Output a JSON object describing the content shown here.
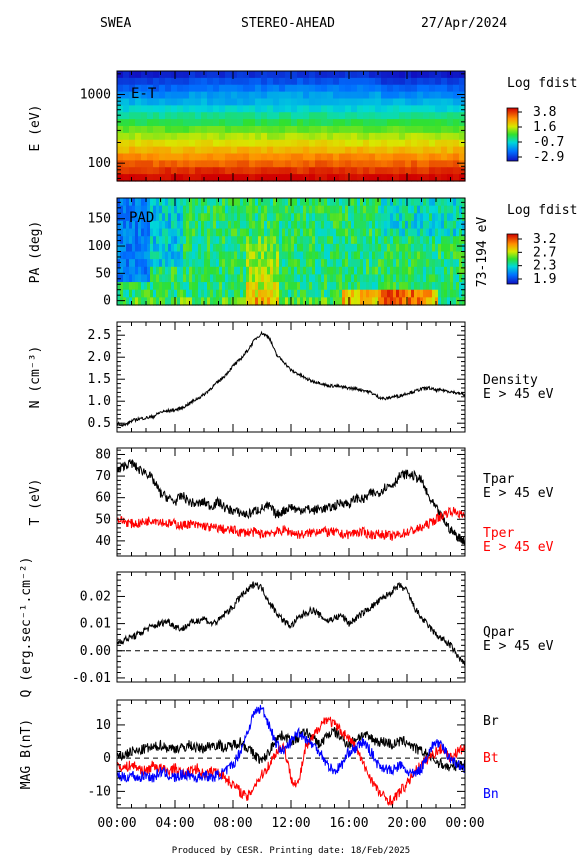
{
  "header": {
    "left": "SWEA",
    "center": "STEREO-AHEAD",
    "right": "27/Apr/2024"
  },
  "footer": "Produced by CESR.   Printing date: 18/Feb/2025",
  "colors": {
    "black": "#000000",
    "red": "#ff0000",
    "blue": "#0000ff"
  },
  "chart_data": [
    {
      "type": "heatmap",
      "panel_label": "E-T",
      "ylabel": "E (eV)",
      "y_scale": "log",
      "ylim": [
        55,
        2200
      ],
      "y_ticks": [
        {
          "v": 100,
          "t": "100"
        },
        {
          "v": 1000,
          "t": "1000"
        }
      ],
      "colorbar": {
        "title": "Log fdist",
        "ticks": [
          "3.8",
          "1.6",
          "-0.7",
          "-2.9"
        ],
        "range": [
          -2.9,
          3.8
        ]
      }
    },
    {
      "type": "heatmap",
      "panel_label": "PAD",
      "ylabel": "PA (deg)",
      "ylim": [
        -8,
        188
      ],
      "y_ticks": [
        {
          "v": 0,
          "t": "0"
        },
        {
          "v": 50,
          "t": "50"
        },
        {
          "v": 100,
          "t": "100"
        },
        {
          "v": 150,
          "t": "150"
        }
      ],
      "right_label": "73-194 eV",
      "colorbar": {
        "title": "Log fdist",
        "ticks": [
          "3.2",
          "2.7",
          "2.3",
          "1.9"
        ],
        "range": [
          1.9,
          3.2
        ]
      }
    },
    {
      "type": "line",
      "ylabel": "N (cm⁻³)",
      "ylim": [
        0.3,
        2.8
      ],
      "y_ticks": [
        {
          "v": 0.5,
          "t": "0.5"
        },
        {
          "v": 1.0,
          "t": "1.0"
        },
        {
          "v": 1.5,
          "t": "1.5"
        },
        {
          "v": 2.0,
          "t": "2.0"
        },
        {
          "v": 2.5,
          "t": "2.5"
        }
      ],
      "series": [
        {
          "name": "Density",
          "sub": "E > 45 eV",
          "color": "#000000",
          "x": [
            0,
            0.5,
            1.0,
            1.5,
            2.0,
            2.5,
            3.0,
            3.5,
            4.0,
            4.5,
            5.0,
            5.5,
            6.0,
            6.5,
            7.0,
            7.5,
            8.0,
            8.5,
            9.0,
            9.5,
            10.0,
            10.5,
            11.0,
            11.5,
            12.0,
            12.5,
            13.0,
            13.5,
            14.0,
            14.5,
            15.0,
            15.5,
            16.0,
            16.5,
            17.0,
            17.5,
            18.0,
            18.5,
            19.0,
            19.5,
            20.0,
            20.5,
            21.0,
            21.5,
            22.0,
            22.5,
            23.0,
            23.5,
            24.0
          ],
          "y": [
            0.5,
            0.45,
            0.55,
            0.6,
            0.62,
            0.65,
            0.75,
            0.78,
            0.8,
            0.85,
            0.95,
            1.05,
            1.15,
            1.3,
            1.45,
            1.6,
            1.8,
            1.95,
            2.15,
            2.4,
            2.55,
            2.45,
            2.05,
            1.9,
            1.7,
            1.62,
            1.52,
            1.45,
            1.42,
            1.35,
            1.35,
            1.32,
            1.3,
            1.28,
            1.25,
            1.2,
            1.1,
            1.05,
            1.1,
            1.12,
            1.18,
            1.22,
            1.28,
            1.3,
            1.25,
            1.25,
            1.22,
            1.18,
            1.15
          ]
        }
      ]
    },
    {
      "type": "line",
      "ylabel": "T (eV)",
      "ylim": [
        33,
        83
      ],
      "y_ticks": [
        {
          "v": 40,
          "t": "40"
        },
        {
          "v": 50,
          "t": "50"
        },
        {
          "v": 60,
          "t": "60"
        },
        {
          "v": 70,
          "t": "70"
        },
        {
          "v": 80,
          "t": "80"
        }
      ],
      "series": [
        {
          "name": "Tpar",
          "sub": "E > 45 eV",
          "color": "#000000",
          "x": [
            0,
            0.5,
            1.0,
            1.5,
            2.0,
            2.5,
            3.0,
            3.5,
            4.0,
            4.5,
            5.0,
            5.5,
            6.0,
            6.5,
            7.0,
            7.5,
            8.0,
            8.5,
            9.0,
            9.5,
            10.0,
            10.5,
            11.0,
            11.5,
            12.0,
            12.5,
            13.0,
            13.5,
            14.0,
            14.5,
            15.0,
            15.5,
            16.0,
            16.5,
            17.0,
            17.5,
            18.0,
            18.5,
            19.0,
            19.5,
            20.0,
            20.5,
            21.0,
            21.5,
            22.0,
            22.5,
            23.0,
            23.5,
            24.0
          ],
          "y": [
            72,
            75,
            76,
            73,
            72,
            68,
            62,
            60,
            58,
            61,
            58,
            57,
            58,
            56,
            58,
            55,
            54,
            53,
            52,
            54,
            55,
            56,
            52,
            54,
            56,
            54,
            55,
            54,
            55,
            55,
            56,
            58,
            57,
            60,
            59,
            62,
            62,
            65,
            66,
            70,
            71,
            70,
            68,
            60,
            55,
            50,
            45,
            42,
            40
          ]
        },
        {
          "name": "Tper",
          "sub": "E > 45 eV",
          "color": "#ff0000",
          "x": [
            0,
            0.5,
            1.0,
            1.5,
            2.0,
            2.5,
            3.0,
            3.5,
            4.0,
            4.5,
            5.0,
            5.5,
            6.0,
            6.5,
            7.0,
            7.5,
            8.0,
            8.5,
            9.0,
            9.5,
            10.0,
            10.5,
            11.0,
            11.5,
            12.0,
            12.5,
            13.0,
            13.5,
            14.0,
            14.5,
            15.0,
            15.5,
            16.0,
            16.5,
            17.0,
            17.5,
            18.0,
            18.5,
            19.0,
            19.5,
            20.0,
            20.5,
            21.0,
            21.5,
            22.0,
            22.5,
            23.0,
            23.5,
            24.0
          ],
          "y": [
            50,
            49,
            48,
            48,
            49,
            50,
            49,
            48,
            48,
            47,
            48,
            47,
            47,
            46,
            46,
            45,
            45,
            44,
            44,
            44,
            43,
            44,
            44,
            45,
            44,
            43,
            43,
            44,
            45,
            44,
            44,
            43,
            43,
            44,
            44,
            43,
            43,
            43,
            42,
            43,
            44,
            45,
            46,
            48,
            50,
            52,
            54,
            53,
            51
          ]
        }
      ]
    },
    {
      "type": "line",
      "ylabel": "Q (erg.sec⁻¹.cm⁻²)",
      "ylim": [
        -0.0115,
        0.029
      ],
      "y_ticks": [
        {
          "v": -0.01,
          "t": "-0.01"
        },
        {
          "v": 0.0,
          "t": "0.00"
        },
        {
          "v": 0.01,
          "t": "0.01"
        },
        {
          "v": 0.02,
          "t": "0.02"
        }
      ],
      "reference_line": 0.0,
      "series": [
        {
          "name": "Qpar",
          "sub": "E > 45 eV",
          "color": "#000000",
          "x": [
            0,
            0.5,
            1.0,
            1.5,
            2.0,
            2.5,
            3.0,
            3.5,
            4.0,
            4.5,
            5.0,
            5.5,
            6.0,
            6.5,
            7.0,
            7.5,
            8.0,
            8.5,
            9.0,
            9.5,
            10.0,
            10.5,
            11.0,
            11.5,
            12.0,
            12.5,
            13.0,
            13.5,
            14.0,
            14.5,
            15.0,
            15.5,
            16.0,
            16.5,
            17.0,
            17.5,
            18.0,
            18.5,
            19.0,
            19.5,
            20.0,
            20.5,
            21.0,
            21.5,
            22.0,
            22.5,
            23.0,
            23.5,
            24.0
          ],
          "y": [
            0.003,
            0.004,
            0.005,
            0.006,
            0.008,
            0.009,
            0.01,
            0.011,
            0.009,
            0.008,
            0.01,
            0.011,
            0.012,
            0.01,
            0.011,
            0.014,
            0.016,
            0.02,
            0.022,
            0.025,
            0.023,
            0.018,
            0.014,
            0.011,
            0.009,
            0.012,
            0.014,
            0.015,
            0.013,
            0.011,
            0.012,
            0.013,
            0.01,
            0.012,
            0.014,
            0.016,
            0.018,
            0.02,
            0.022,
            0.024,
            0.022,
            0.016,
            0.012,
            0.009,
            0.006,
            0.004,
            0.002,
            -0.002,
            -0.005
          ]
        }
      ]
    },
    {
      "type": "line",
      "ylabel": "MAG B(nT)",
      "ylim": [
        -15,
        17.5
      ],
      "y_ticks": [
        {
          "v": -10,
          "t": "-10"
        },
        {
          "v": 0,
          "t": "0"
        },
        {
          "v": 10,
          "t": "10"
        }
      ],
      "reference_line": 0,
      "series": [
        {
          "name": "Br",
          "color": "#000000",
          "x": [
            0,
            0.5,
            1.0,
            1.5,
            2.0,
            2.5,
            3.0,
            3.5,
            4.0,
            4.5,
            5.0,
            5.5,
            6.0,
            6.5,
            7.0,
            7.5,
            8.0,
            8.5,
            9.0,
            9.5,
            10.0,
            10.5,
            11.0,
            11.5,
            12.0,
            12.5,
            13.0,
            13.5,
            14.0,
            14.5,
            15.0,
            15.5,
            16.0,
            16.5,
            17.0,
            17.5,
            18.0,
            18.5,
            19.0,
            19.5,
            20.0,
            20.5,
            21.0,
            21.5,
            22.0,
            22.5,
            23.0,
            23.5,
            24.0
          ],
          "y": [
            0,
            1,
            2,
            2,
            3,
            3,
            4,
            3,
            3,
            3,
            4,
            3,
            3,
            4,
            4,
            3,
            4,
            5,
            3,
            1,
            -1,
            2,
            6,
            7,
            5,
            6,
            8,
            6,
            4,
            7,
            8,
            6,
            4,
            6,
            7,
            6,
            5,
            5,
            4,
            5,
            5,
            3,
            2,
            1,
            -1,
            -2,
            -3,
            -2,
            -2
          ]
        },
        {
          "name": "Bt",
          "color": "#ff0000",
          "x": [
            0,
            0.5,
            1.0,
            1.5,
            2.0,
            2.5,
            3.0,
            3.5,
            4.0,
            4.5,
            5.0,
            5.5,
            6.0,
            6.5,
            7.0,
            7.5,
            8.0,
            8.5,
            9.0,
            9.5,
            10.0,
            10.5,
            11.0,
            11.5,
            12.0,
            12.5,
            13.0,
            13.5,
            14.0,
            14.5,
            15.0,
            15.5,
            16.0,
            16.5,
            17.0,
            17.5,
            18.0,
            18.5,
            19.0,
            19.5,
            20.0,
            20.5,
            21.0,
            21.5,
            22.0,
            22.5,
            23.0,
            23.5,
            24.0
          ],
          "y": [
            -2,
            -3,
            -2,
            -3,
            -4,
            -2,
            -3,
            -4,
            -3,
            -5,
            -4,
            -3,
            -5,
            -4,
            -4,
            -6,
            -8,
            -10,
            -12,
            -8,
            -5,
            -2,
            2,
            4,
            -6,
            -8,
            3,
            6,
            10,
            12,
            10,
            8,
            6,
            3,
            -2,
            -6,
            -10,
            -12,
            -13,
            -10,
            -8,
            -4,
            -2,
            0,
            2,
            3,
            0,
            2,
            3
          ]
        },
        {
          "name": "Bn",
          "color": "#0000ff",
          "x": [
            0,
            0.5,
            1.0,
            1.5,
            2.0,
            2.5,
            3.0,
            3.5,
            4.0,
            4.5,
            5.0,
            5.5,
            6.0,
            6.5,
            7.0,
            7.5,
            8.0,
            8.5,
            9.0,
            9.5,
            10.0,
            10.5,
            11.0,
            11.5,
            12.0,
            12.5,
            13.0,
            13.5,
            14.0,
            14.5,
            15.0,
            15.5,
            16.0,
            16.5,
            17.0,
            17.5,
            18.0,
            18.5,
            19.0,
            19.5,
            20.0,
            20.5,
            21.0,
            21.5,
            22.0,
            22.5,
            23.0,
            23.5,
            24.0
          ],
          "y": [
            -5,
            -6,
            -5,
            -6,
            -5,
            -6,
            -4,
            -5,
            -6,
            -5,
            -5,
            -6,
            -5,
            -6,
            -5,
            -4,
            -2,
            2,
            8,
            14,
            15,
            10,
            4,
            2,
            5,
            8,
            6,
            4,
            2,
            -2,
            -4,
            -2,
            2,
            3,
            5,
            2,
            -2,
            -3,
            -4,
            -2,
            -4,
            -5,
            -3,
            2,
            5,
            3,
            0,
            -2,
            -3
          ]
        }
      ]
    }
  ],
  "x_axis": {
    "range": [
      0,
      24
    ],
    "ticks": [
      {
        "v": 0,
        "t": "00:00"
      },
      {
        "v": 4,
        "t": "04:00"
      },
      {
        "v": 8,
        "t": "08:00"
      },
      {
        "v": 12,
        "t": "12:00"
      },
      {
        "v": 16,
        "t": "16:00"
      },
      {
        "v": 20,
        "t": "20:00"
      },
      {
        "v": 24,
        "t": "00:00"
      }
    ]
  }
}
